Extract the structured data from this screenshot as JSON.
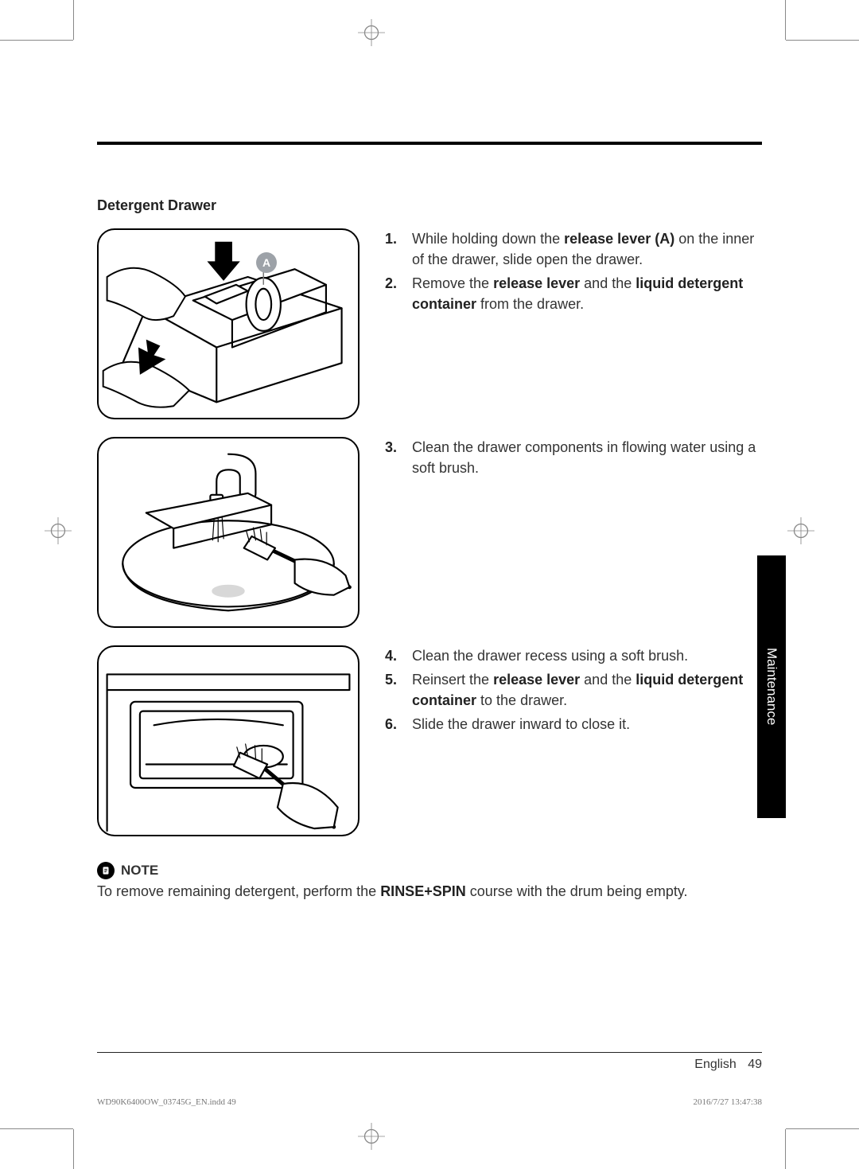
{
  "section_title": "Detergent Drawer",
  "callout_A": "A",
  "steps": {
    "block1": {
      "start": 0,
      "items": [
        {
          "pre": "While holding down the ",
          "em1": "release lever (A)",
          "mid": " on the inner of the drawer, slide open the drawer.",
          "em2": "",
          "post": ""
        },
        {
          "pre": "Remove the ",
          "em1": "release lever",
          "mid": " and the ",
          "em2": "liquid detergent container",
          "post": " from the drawer."
        }
      ]
    },
    "block2": {
      "start": 2,
      "items": [
        {
          "pre": "Clean the drawer components in flowing water using a soft brush.",
          "em1": "",
          "mid": "",
          "em2": "",
          "post": ""
        }
      ]
    },
    "block3": {
      "start": 3,
      "items": [
        {
          "pre": "Clean the drawer recess using a soft brush.",
          "em1": "",
          "mid": "",
          "em2": "",
          "post": ""
        },
        {
          "pre": "Reinsert the ",
          "em1": "release lever",
          "mid": " and the ",
          "em2": "liquid detergent container",
          "post": " to the drawer."
        },
        {
          "pre": "Slide the drawer inward to close it.",
          "em1": "",
          "mid": "",
          "em2": "",
          "post": ""
        }
      ]
    }
  },
  "note": {
    "label": "NOTE",
    "text_pre": "To remove remaining detergent, perform the ",
    "text_em": "RINSE+SPIN",
    "text_post": " course with the drum being empty."
  },
  "side_tab": "Maintenance",
  "footer": {
    "lang": "English",
    "page": "49"
  },
  "imprint": {
    "left": "WD90K6400OW_03745G_EN.indd   49",
    "right": "2016/7/27   13:47:38"
  },
  "colors": {
    "text": "#333333",
    "rule": "#000000",
    "callout_bg": "#9da2a8",
    "tab_bg": "#000000",
    "tab_fg": "#ffffff"
  }
}
